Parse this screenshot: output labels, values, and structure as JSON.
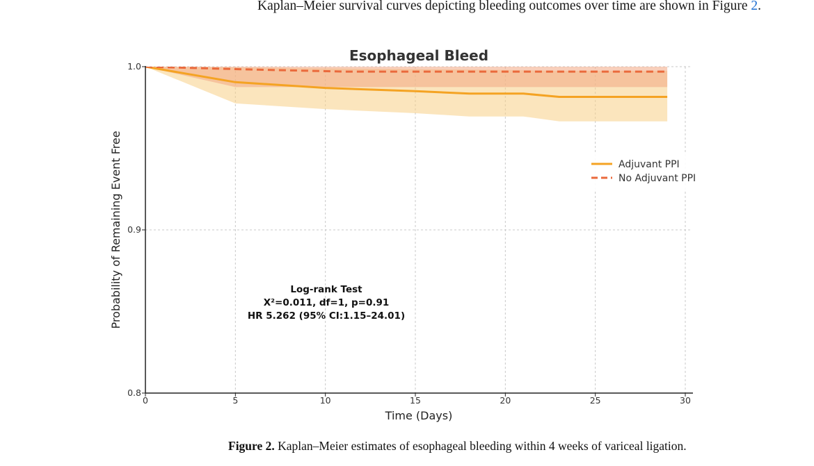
{
  "paragraph": {
    "text_before_ref": "Kaplan–Meier survival curves depicting bleeding outcomes over time are shown in Figure ",
    "ref": "2",
    "text_after_ref": "."
  },
  "caption": {
    "label": "Figure 2.",
    "text": "Kaplan–Meier estimates of esophageal bleeding within 4 weeks of variceal ligation."
  },
  "chart_data": {
    "type": "line",
    "title": "Esophageal Bleed",
    "xlabel": "Time (Days)",
    "ylabel": "Probability of Remaining Event Free",
    "xlim": [
      0,
      30
    ],
    "ylim": [
      0.8,
      1.0
    ],
    "x_ticks": [
      0,
      5,
      10,
      15,
      20,
      25,
      30
    ],
    "y_ticks": [
      0.8,
      0.9,
      1.0
    ],
    "x_tick_labels": [
      "0",
      "5",
      "10",
      "15",
      "20",
      "25",
      "30"
    ],
    "y_tick_labels": [
      "0.8",
      "0.9",
      "1.0"
    ],
    "grid": true,
    "legend_position": "right",
    "series": [
      {
        "name": "Adjuvant PPI",
        "color": "#f4a323",
        "band_color": "#f7cf86",
        "style": "solid",
        "points": [
          [
            0,
            1.0
          ],
          [
            5,
            0.9905
          ],
          [
            10,
            0.987
          ],
          [
            15,
            0.985
          ],
          [
            18,
            0.9835
          ],
          [
            21,
            0.9835
          ],
          [
            23,
            0.9815
          ],
          [
            29,
            0.9815
          ]
        ],
        "ci_upper": [
          [
            0,
            1.0
          ],
          [
            5,
            0.9995
          ],
          [
            10,
            0.999
          ],
          [
            15,
            0.9985
          ],
          [
            20,
            0.998
          ],
          [
            23,
            0.9975
          ],
          [
            29,
            0.9975
          ]
        ],
        "ci_lower": [
          [
            0,
            1.0
          ],
          [
            5,
            0.9775
          ],
          [
            10,
            0.974
          ],
          [
            15,
            0.9715
          ],
          [
            18,
            0.9695
          ],
          [
            21,
            0.9695
          ],
          [
            23,
            0.9665
          ],
          [
            29,
            0.9665
          ]
        ]
      },
      {
        "name": "No Adjuvant PPI",
        "color": "#ea6a3c",
        "band_color": "#f3a884",
        "style": "dashed",
        "points": [
          [
            0,
            1.0
          ],
          [
            5,
            0.9985
          ],
          [
            11,
            0.997
          ],
          [
            29,
            0.997
          ]
        ],
        "ci_upper": [
          [
            0,
            1.0
          ],
          [
            5,
            1.0
          ],
          [
            29,
            1.0
          ]
        ],
        "ci_lower": [
          [
            0,
            1.0
          ],
          [
            5,
            0.9875
          ],
          [
            10,
            0.9875
          ],
          [
            23,
            0.9875
          ],
          [
            29,
            0.9875
          ]
        ]
      }
    ],
    "annotation": {
      "lines": [
        "Log-rank Test",
        "X²=0.011, df=1, p=0.91",
        "HR 5.262 (95% CI:1.15–24.01)"
      ]
    }
  }
}
